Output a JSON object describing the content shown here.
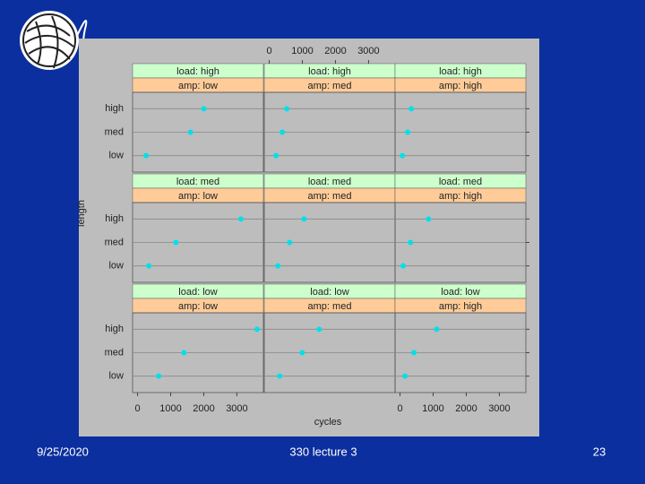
{
  "chart_data": {
    "type": "dotplot",
    "x_label": "cycles",
    "y_label": "length",
    "categories": [
      "low",
      "med",
      "high"
    ],
    "xlim": [
      -150,
      3800
    ],
    "xticks": [
      0,
      1000,
      2000,
      3000
    ],
    "color": "#00e0ea",
    "strip_colors": [
      "#ccffcc",
      "#ffcc99"
    ],
    "grid": true,
    "panels": [
      {
        "load": "load: high",
        "amp": "amp: low",
        "values": [
          260,
          1600,
          2000
        ]
      },
      {
        "load": "load: high",
        "amp": "amp: med",
        "values": [
          205,
          395,
          530
        ]
      },
      {
        "load": "load: high",
        "amp": "amp: high",
        "values": [
          70,
          230,
          340
        ]
      },
      {
        "load": "load: med",
        "amp": "amp: low",
        "values": [
          340,
          1160,
          3120
        ]
      },
      {
        "load": "load: med",
        "amp": "amp: med",
        "values": [
          260,
          615,
          1050
        ]
      },
      {
        "load": "load: med",
        "amp": "amp: high",
        "values": [
          95,
          315,
          860
        ]
      },
      {
        "load": "load: low",
        "amp": "amp: low",
        "values": [
          640,
          1400,
          3610
        ]
      },
      {
        "load": "load: low",
        "amp": "amp: med",
        "values": [
          315,
          995,
          1510
        ]
      },
      {
        "load": "load: low",
        "amp": "amp: high",
        "values": [
          150,
          420,
          1105
        ]
      }
    ]
  },
  "footer": {
    "date": "9/25/2020",
    "title": "330 lecture 3",
    "page": "23"
  }
}
